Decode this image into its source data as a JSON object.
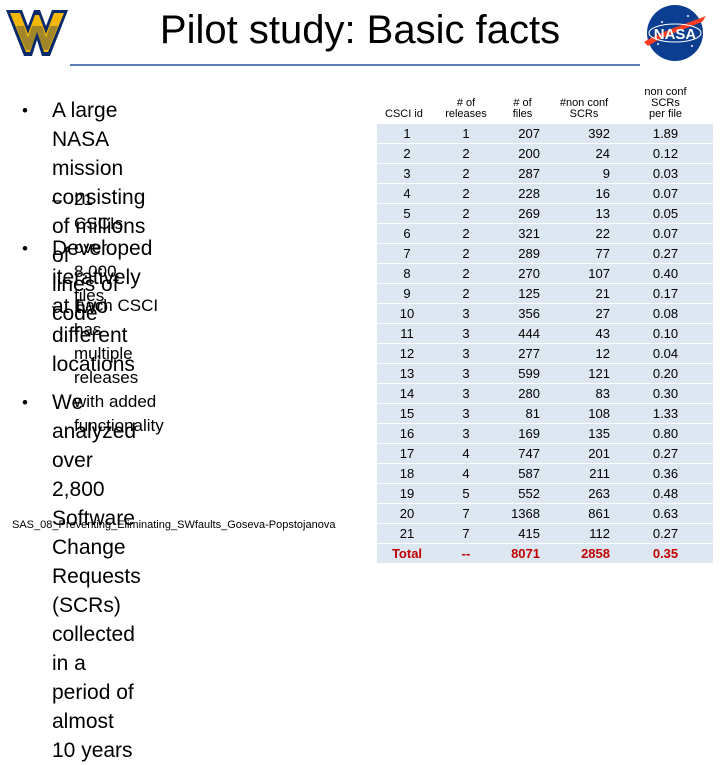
{
  "title": "Pilot study: Basic facts",
  "bullets": [
    {
      "lines": [
        "A large NASA mission",
        "consisting of millions of",
        "lines of code"
      ],
      "sub": {
        "lines": [
          "21 CSCIs, over 8,000 files"
        ]
      }
    },
    {
      "lines": [
        "Developed iteratively at two",
        "different locations"
      ],
      "sub": {
        "lines": [
          "Each CSCI has multiple",
          "releases with added",
          "functionality"
        ]
      }
    },
    {
      "lines": [
        "We analyzed over 2,800",
        "Software Change Requests",
        "(SCRs) collected in a",
        "period of almost 10 years"
      ]
    }
  ],
  "footer": "SAS_08_Preventing_Eliminating_SWfaults_Goseva-Popstojanova",
  "table": {
    "headers": [
      [
        "CSCI id"
      ],
      [
        "# of",
        "releases"
      ],
      [
        "# of",
        "files"
      ],
      [
        "#non conf",
        "SCRs"
      ],
      [
        "non conf",
        "SCRs",
        "per file"
      ]
    ],
    "rows": [
      [
        "1",
        "1",
        "207",
        "392",
        "1.89"
      ],
      [
        "2",
        "2",
        "200",
        "24",
        "0.12"
      ],
      [
        "3",
        "2",
        "287",
        "9",
        "0.03"
      ],
      [
        "4",
        "2",
        "228",
        "16",
        "0.07"
      ],
      [
        "5",
        "2",
        "269",
        "13",
        "0.05"
      ],
      [
        "6",
        "2",
        "321",
        "22",
        "0.07"
      ],
      [
        "7",
        "2",
        "289",
        "77",
        "0.27"
      ],
      [
        "8",
        "2",
        "270",
        "107",
        "0.40"
      ],
      [
        "9",
        "2",
        "125",
        "21",
        "0.17"
      ],
      [
        "10",
        "3",
        "356",
        "27",
        "0.08"
      ],
      [
        "11",
        "3",
        "444",
        "43",
        "0.10"
      ],
      [
        "12",
        "3",
        "277",
        "12",
        "0.04"
      ],
      [
        "13",
        "3",
        "599",
        "121",
        "0.20"
      ],
      [
        "14",
        "3",
        "280",
        "83",
        "0.30"
      ],
      [
        "15",
        "3",
        "81",
        "108",
        "1.33"
      ],
      [
        "16",
        "3",
        "169",
        "135",
        "0.80"
      ],
      [
        "17",
        "4",
        "747",
        "201",
        "0.27"
      ],
      [
        "18",
        "4",
        "587",
        "211",
        "0.36"
      ],
      [
        "19",
        "5",
        "552",
        "263",
        "0.48"
      ],
      [
        "20",
        "7",
        "1368",
        "861",
        "0.63"
      ],
      [
        "21",
        "7",
        "415",
        "112",
        "0.27"
      ]
    ],
    "total": [
      "Total",
      "--",
      "8071",
      "2858",
      "0.35"
    ]
  },
  "colors": {
    "row_shade": "#dde7f2",
    "total_text": "#c00000",
    "title_rule": "#5a7fb5"
  },
  "logos": {
    "left": "wvu-logo",
    "right": "nasa-logo"
  }
}
